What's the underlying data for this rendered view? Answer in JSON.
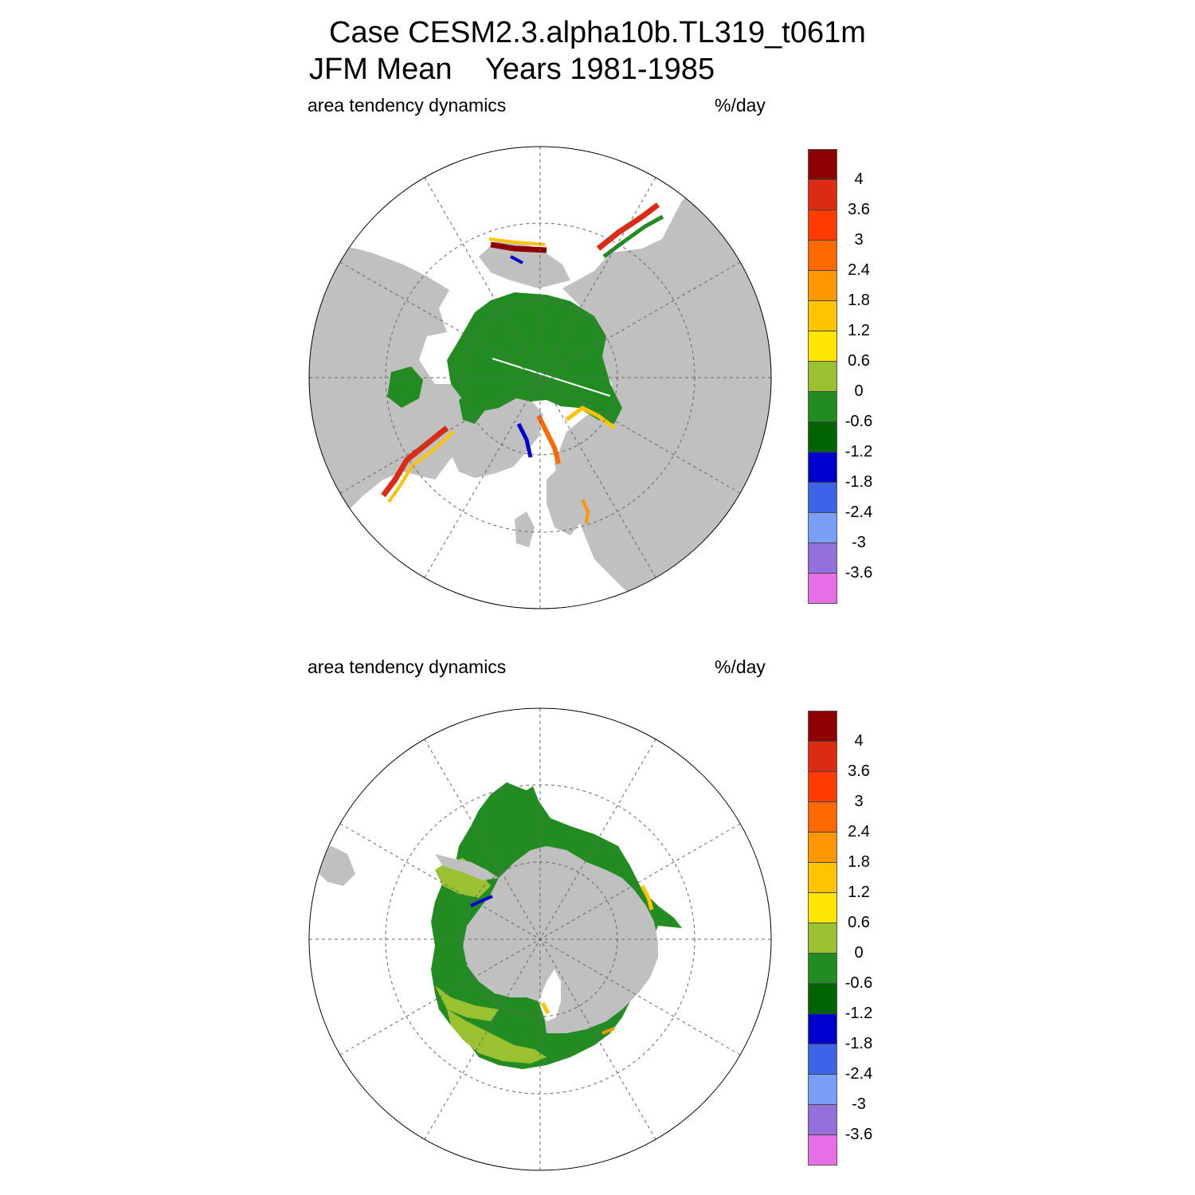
{
  "title": {
    "line1": "Case CESM2.3.alpha10b.TL319_t061m",
    "line2": "JFM Mean    Years 1981-1985"
  },
  "panels": [
    {
      "left_label": "area tendency dynamics",
      "right_label": "%/day",
      "hemisphere": "north"
    },
    {
      "left_label": "area tendency dynamics",
      "right_label": "%/day",
      "hemisphere": "south"
    }
  ],
  "colorbar": {
    "colors": [
      "#8b0000",
      "#dd2a12",
      "#ff3b00",
      "#ff6a00",
      "#ff9700",
      "#ffc300",
      "#ffe500",
      "#9ac130",
      "#228b22",
      "#006400",
      "#0000cd",
      "#3c64e6",
      "#789ef5",
      "#9370db",
      "#e66ee6"
    ],
    "labels": [
      "4",
      "3.6",
      "3",
      "2.4",
      "1.8",
      "1.2",
      "0.6",
      "0",
      "-0.6",
      "-1.2",
      "-1.8",
      "-2.4",
      "-3",
      "-3.6"
    ]
  },
  "map_colors": {
    "land": "#c0c0c0",
    "ocean": "#ffffff",
    "grid": "#666666"
  }
}
